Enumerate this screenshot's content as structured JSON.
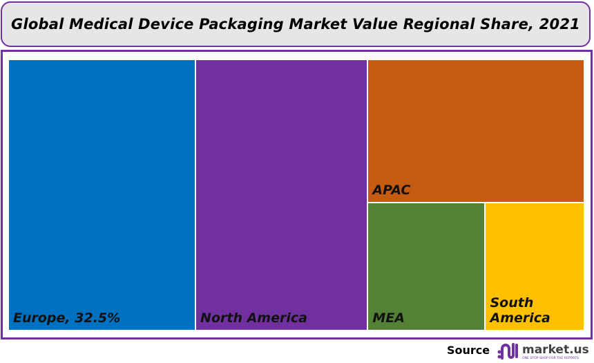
{
  "chart_data": {
    "type": "treemap",
    "title": "Global Medical Device Packaging Market Value Regional Share, 2021",
    "categories": [
      "Europe",
      "North America",
      "APAC",
      "MEA",
      "South America"
    ],
    "labels": [
      "Europe, 32.5%",
      "North America",
      "APAC",
      "MEA",
      "South\nAmerica"
    ],
    "values": [
      32.5,
      29.9,
      19.9,
      9.6,
      8.1
    ],
    "colors": [
      "#0070c0",
      "#7030a0",
      "#c55a11",
      "#538135",
      "#ffc000"
    ]
  },
  "footer": {
    "source_label": "Source",
    "logo_text": "market.us",
    "logo_tagline": "ONE STOP SHOP FOR THE REPORTS"
  }
}
